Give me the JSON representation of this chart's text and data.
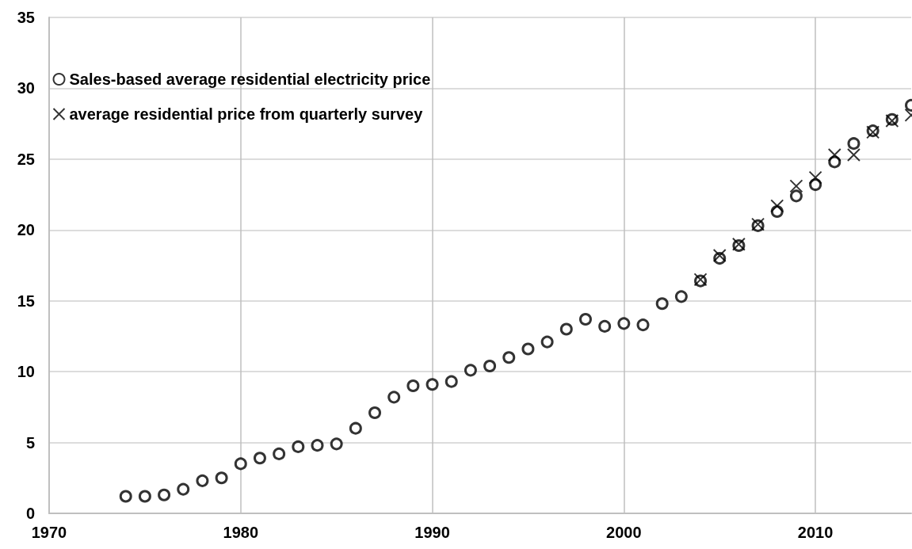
{
  "chart_data": {
    "type": "scatter",
    "xlim": [
      1970,
      2015
    ],
    "xticks": [
      1970,
      1980,
      1990,
      2000,
      2010
    ],
    "ylim": [
      0,
      35
    ],
    "yticks": [
      0,
      5,
      10,
      15,
      20,
      25,
      30,
      35
    ],
    "grid": true,
    "legend": "top left",
    "series": [
      {
        "name": "Sales-based average residential electricity price",
        "color": "#000000",
        "marker": "circle",
        "x": [
          1974,
          1975,
          1976,
          1977,
          1978,
          1979,
          1980,
          1981,
          1982,
          1983,
          1984,
          1985,
          1986,
          1987,
          1988,
          1989,
          1990,
          1991,
          1992,
          1993,
          1994,
          1995,
          1996,
          1997,
          1998,
          1999,
          2000,
          2001,
          2002,
          2003,
          2004,
          2005,
          2006,
          2007,
          2008,
          2009,
          2010,
          2011,
          2012,
          2013,
          2014,
          2015
        ],
        "values": [
          1.2,
          1.2,
          1.3,
          1.7,
          2.3,
          2.5,
          3.5,
          3.9,
          4.2,
          4.7,
          4.8,
          4.9,
          6.0,
          7.1,
          8.2,
          9.0,
          9.1,
          9.3,
          10.1,
          10.4,
          11.0,
          11.6,
          12.1,
          13.0,
          13.7,
          13.2,
          13.4,
          13.3,
          14.8,
          15.3,
          16.4,
          18.0,
          18.9,
          20.3,
          21.3,
          22.4,
          23.2,
          24.8,
          26.1,
          27.0,
          27.8,
          28.8
        ]
      },
      {
        "name": "average residential price from quarterly survey",
        "color": "#000000",
        "marker": "cross",
        "x": [
          2004,
          2005,
          2006,
          2007,
          2008,
          2009,
          2010,
          2011,
          2012,
          2013,
          2014,
          2015
        ],
        "values": [
          16.5,
          18.2,
          19.0,
          20.4,
          21.7,
          23.1,
          23.7,
          25.3,
          25.3,
          26.9,
          27.7,
          28.1
        ]
      }
    ]
  }
}
